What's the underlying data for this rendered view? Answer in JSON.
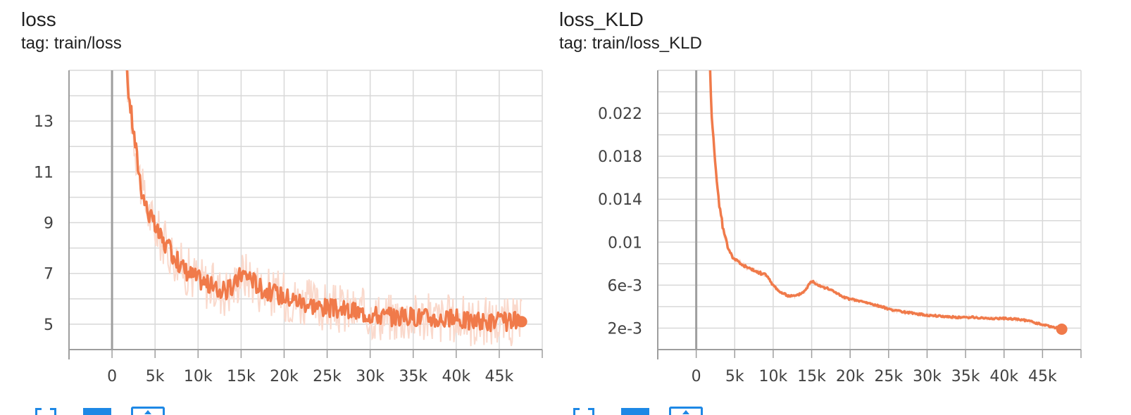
{
  "colors": {
    "line": "#f07a4a",
    "raw": "#fad9cc",
    "grid": "#d8d8d8",
    "axis": "#9e9e9e",
    "toolbar_icon": "#1e88e5"
  },
  "cards": [
    {
      "title": "loss",
      "tag": "tag: train/loss",
      "toolbar": [
        "fit-domain-icon",
        "show-data-icon",
        "expand-icon"
      ]
    },
    {
      "title": "loss_KLD",
      "tag": "tag: train/loss_KLD",
      "toolbar": [
        "fit-domain-icon",
        "show-data-icon",
        "expand-icon"
      ]
    }
  ],
  "chart_data": [
    {
      "type": "line",
      "title": "loss",
      "subtitle": "tag: train/loss",
      "xlim": [
        -5000,
        50000
      ],
      "ylim": [
        4,
        15
      ],
      "x_ticks": [
        0,
        5000,
        10000,
        15000,
        20000,
        25000,
        30000,
        35000,
        40000,
        45000
      ],
      "x_tick_labels": [
        "0",
        "5k",
        "10k",
        "15k",
        "20k",
        "25k",
        "30k",
        "35k",
        "40k",
        "45k"
      ],
      "y_ticks": [
        5,
        7,
        9,
        11,
        13
      ],
      "y_tick_labels": [
        "5",
        "7",
        "9",
        "11",
        "13"
      ],
      "grid": true,
      "smoothing_noise": 0.38,
      "raw_noise": 1.0,
      "series": [
        {
          "name": "",
          "x": [
            1700,
            2000,
            2500,
            3000,
            3500,
            4000,
            4500,
            5000,
            6000,
            7000,
            8000,
            9000,
            10000,
            11000,
            12000,
            13000,
            14000,
            15000,
            16000,
            17000,
            18000,
            19000,
            20000,
            22000,
            24000,
            26000,
            28000,
            30000,
            32000,
            34000,
            36000,
            38000,
            40000,
            42000,
            44000,
            46000,
            47000,
            47600
          ],
          "y": [
            15.0,
            13.9,
            12.6,
            11.3,
            10.2,
            9.6,
            9.2,
            8.8,
            8.2,
            7.8,
            7.3,
            7.0,
            6.8,
            6.6,
            6.4,
            6.3,
            6.4,
            7.0,
            6.9,
            6.5,
            6.3,
            6.2,
            6.1,
            5.9,
            5.7,
            5.6,
            5.5,
            5.4,
            5.3,
            5.3,
            5.3,
            5.2,
            5.2,
            5.1,
            5.1,
            5.1,
            5.1,
            5.1
          ]
        }
      ],
      "end_point": [
        47600,
        5.1
      ]
    },
    {
      "type": "line",
      "title": "loss_KLD",
      "subtitle": "tag: train/loss_KLD",
      "xlim": [
        -5000,
        50000
      ],
      "ylim": [
        0,
        0.026
      ],
      "x_ticks": [
        0,
        5000,
        10000,
        15000,
        20000,
        25000,
        30000,
        35000,
        40000,
        45000
      ],
      "x_tick_labels": [
        "0",
        "5k",
        "10k",
        "15k",
        "20k",
        "25k",
        "30k",
        "35k",
        "40k",
        "45k"
      ],
      "y_ticks": [
        0.002,
        0.006,
        0.01,
        0.014,
        0.018,
        0.022
      ],
      "y_tick_labels": [
        "2e-3",
        "6e-3",
        "0.01",
        "0.014",
        "0.018",
        "0.022"
      ],
      "grid": true,
      "smoothing_noise": 0.00025,
      "raw_noise": 0.0004,
      "series": [
        {
          "name": "",
          "x": [
            1800,
            2000,
            2500,
            3000,
            3500,
            4000,
            4500,
            5000,
            6000,
            7000,
            8000,
            9000,
            10000,
            11000,
            12000,
            13000,
            14000,
            15000,
            16000,
            17000,
            18000,
            19000,
            20000,
            22000,
            24000,
            26000,
            28000,
            30000,
            32000,
            34000,
            36000,
            38000,
            40000,
            42000,
            43000,
            44000,
            47500
          ],
          "y": [
            0.026,
            0.022,
            0.017,
            0.0135,
            0.0112,
            0.0098,
            0.0089,
            0.0084,
            0.0079,
            0.0075,
            0.0072,
            0.007,
            0.006,
            0.0053,
            0.005,
            0.005,
            0.0054,
            0.0064,
            0.006,
            0.0057,
            0.0054,
            0.0049,
            0.0047,
            0.0044,
            0.004,
            0.0036,
            0.0034,
            0.0032,
            0.0031,
            0.003,
            0.003,
            0.0029,
            0.0029,
            0.0028,
            0.0027,
            0.0025,
            0.0019
          ]
        }
      ],
      "end_point": [
        47500,
        0.0019
      ]
    }
  ]
}
